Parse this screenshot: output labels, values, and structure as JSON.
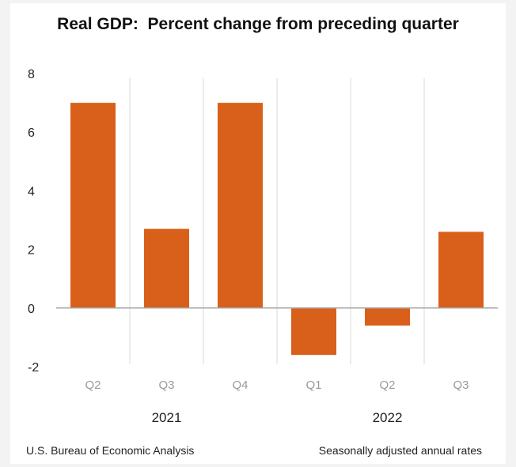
{
  "chart_data": {
    "type": "bar",
    "title": "Real GDP:  Percent change from preceding quarter",
    "categories": [
      "Q2",
      "Q3",
      "Q4",
      "Q1",
      "Q2",
      "Q3"
    ],
    "groups": [
      {
        "label": "2021",
        "categories": [
          "Q2",
          "Q3",
          "Q4"
        ]
      },
      {
        "label": "2022",
        "categories": [
          "Q1",
          "Q2",
          "Q3"
        ]
      }
    ],
    "values": [
      7.0,
      2.7,
      7.0,
      -1.6,
      -0.6,
      2.6
    ],
    "yticks": [
      -2,
      0,
      2,
      4,
      6,
      8
    ],
    "ylim": [
      -2,
      8
    ],
    "grid": false,
    "bar_color": "#d9601a"
  },
  "footer": {
    "source": "U.S. Bureau of Economic Analysis",
    "note": "Seasonally adjusted annual rates"
  }
}
